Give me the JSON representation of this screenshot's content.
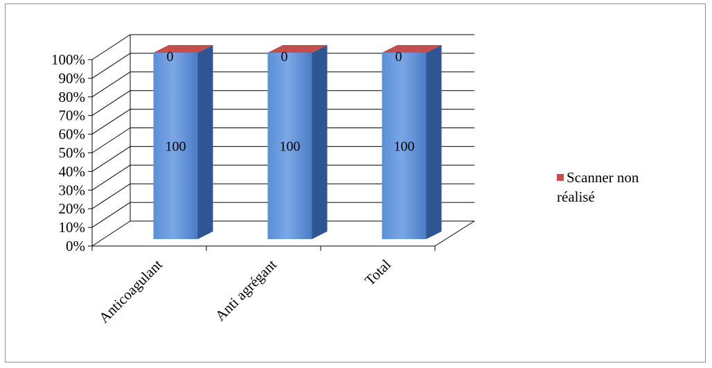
{
  "chart_data": {
    "type": "bar",
    "stacked": "100%",
    "three_d": true,
    "categories": [
      "Anticoagulant",
      "Anti agrégant",
      "Total"
    ],
    "series": [
      {
        "name": "",
        "values": [
          100,
          100,
          100
        ],
        "data_labels": [
          "100",
          "100",
          "100"
        ],
        "color": "#4f81bd"
      },
      {
        "name": "Scanner non réalisé",
        "values": [
          0,
          0,
          0
        ],
        "data_labels": [
          "0",
          "0",
          "0"
        ],
        "color": "#c0504d"
      }
    ],
    "y_ticks": [
      "0%",
      "10%",
      "20%",
      "30%",
      "40%",
      "50%",
      "60%",
      "70%",
      "80%",
      "90%",
      "100%"
    ],
    "ylim": [
      0,
      100
    ],
    "grid": true,
    "legend_position": "right",
    "legend_entries": [
      {
        "label_line1": "Scanner non",
        "label_line2": "réalisé",
        "color": "#c0504d"
      }
    ]
  }
}
